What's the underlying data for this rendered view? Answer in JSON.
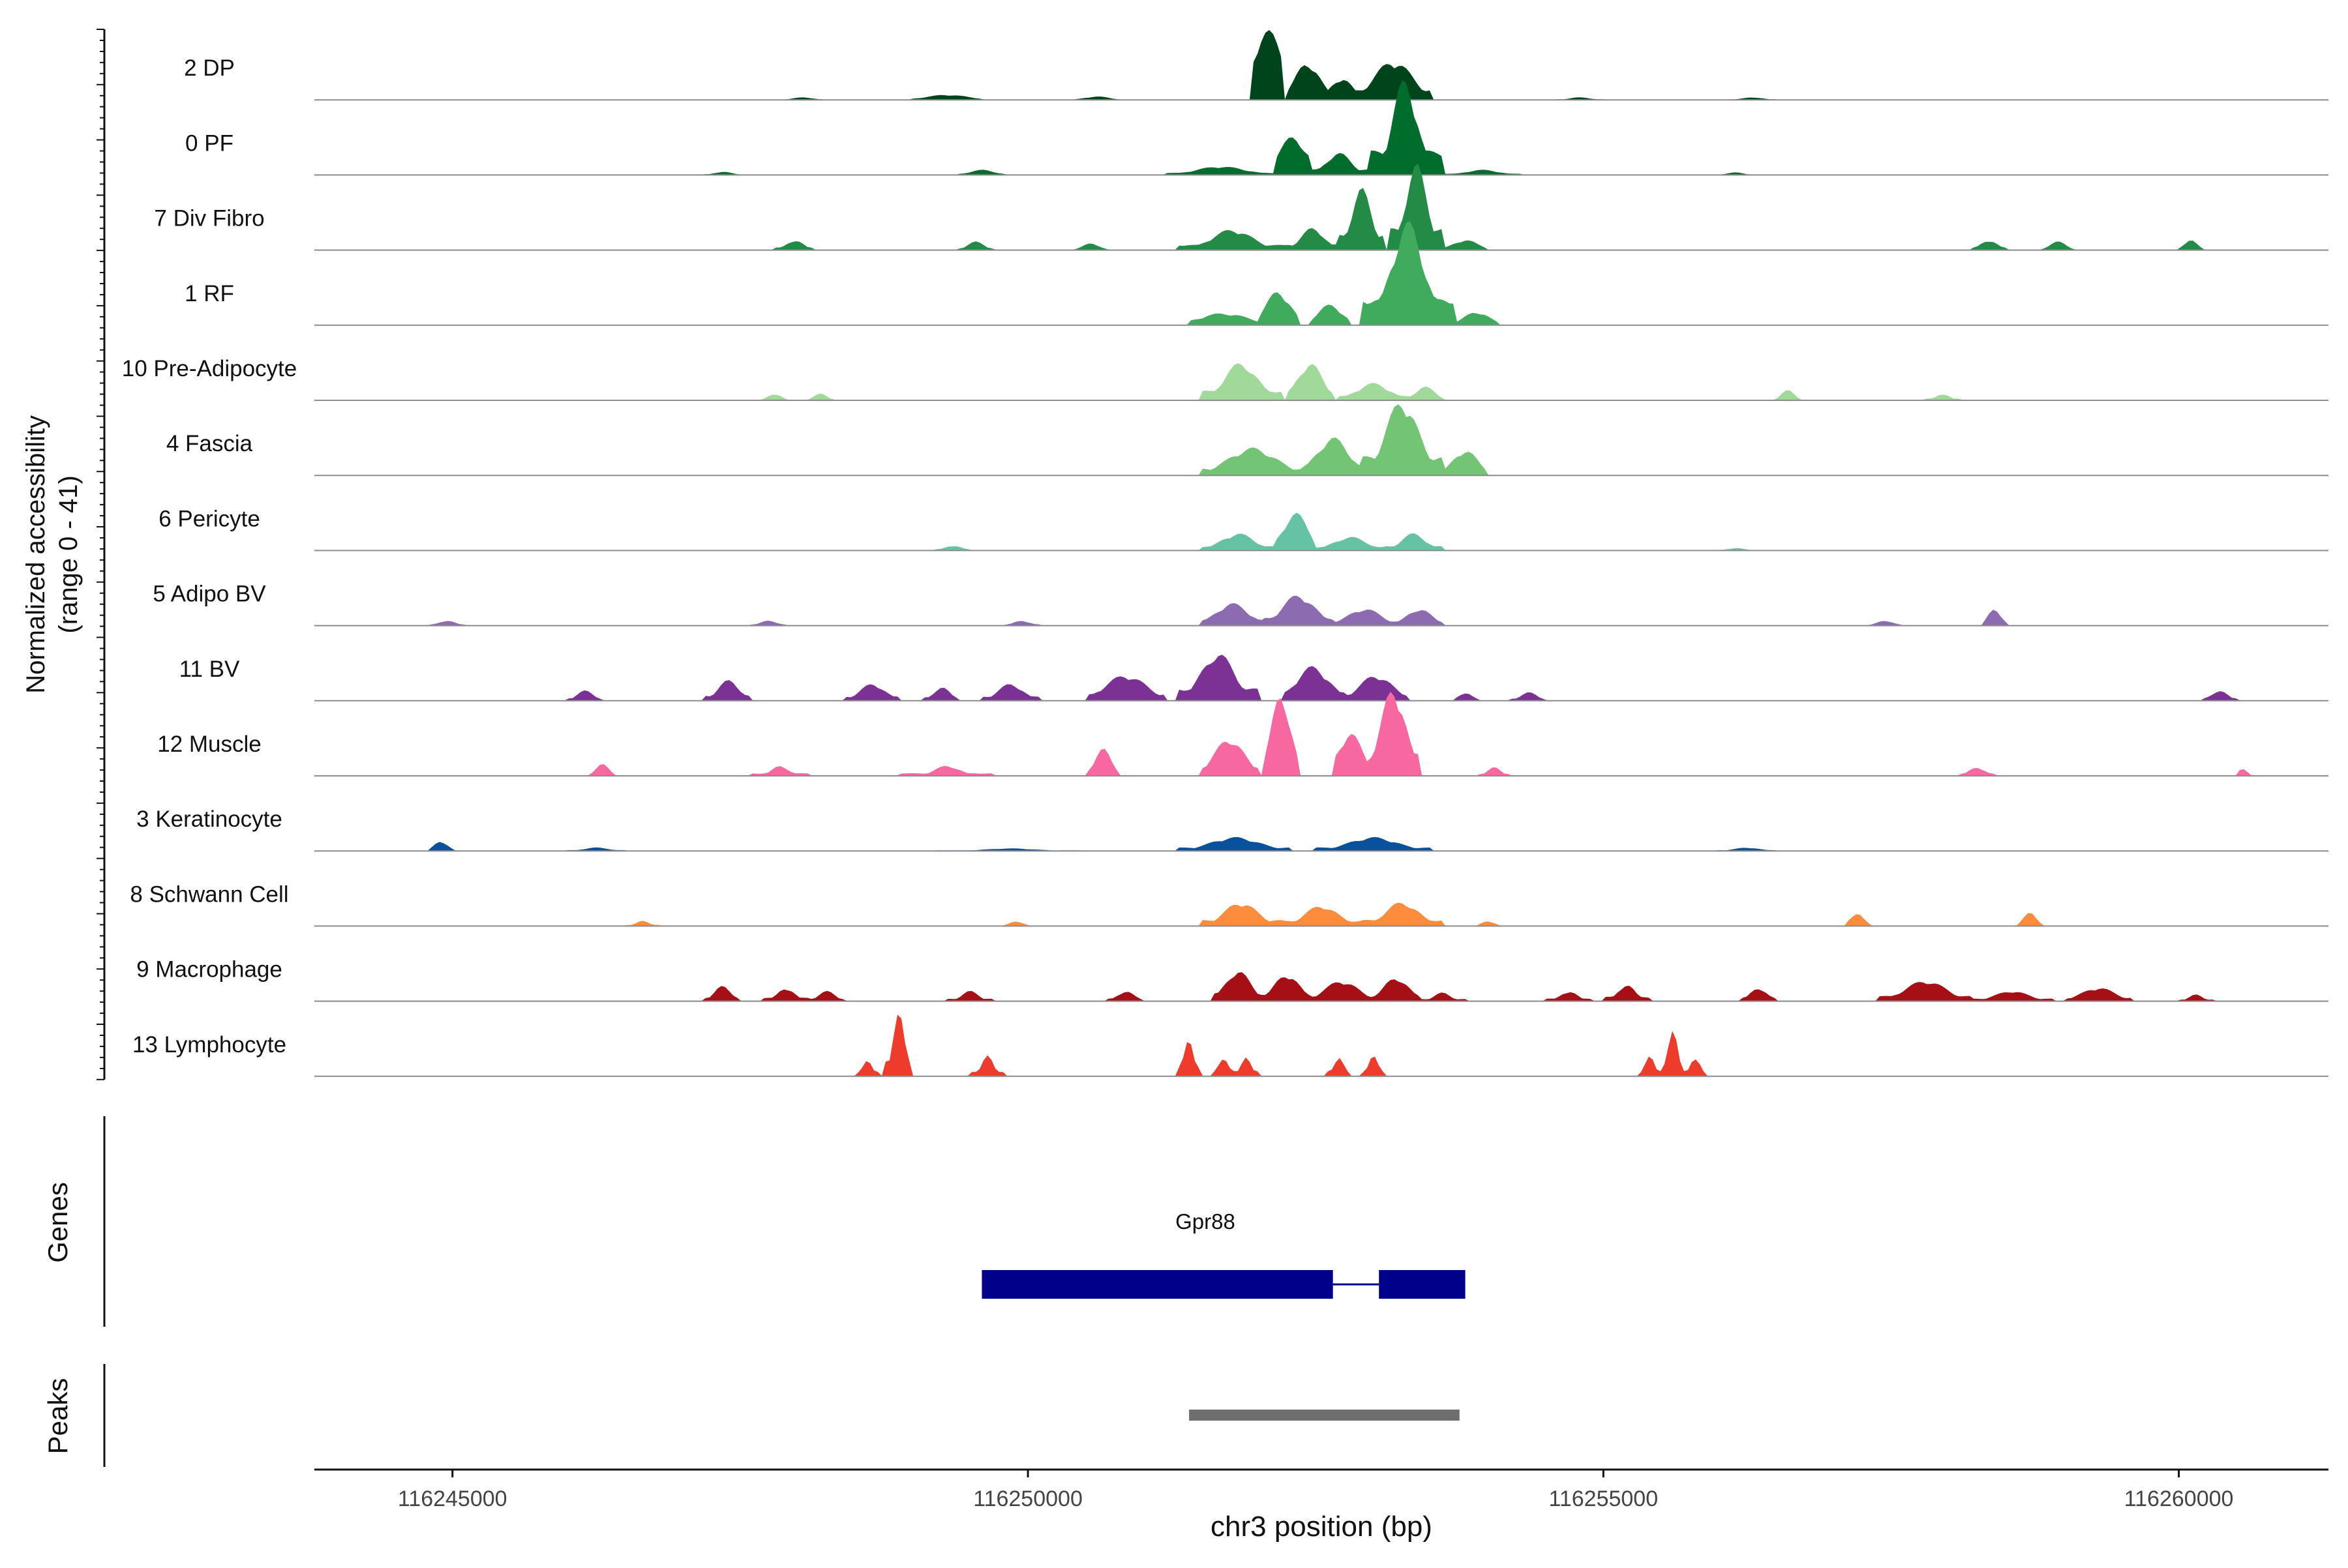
{
  "chart_data": {
    "type": "area",
    "title": "",
    "xlabel": "chr3 position (bp)",
    "xlim": [
      116243800,
      116261300
    ],
    "x_ticks": [
      {
        "value": 116245000,
        "label": "116245000"
      },
      {
        "value": 116250000,
        "label": "116250000"
      },
      {
        "value": 116255000,
        "label": "116255000"
      },
      {
        "value": 116260000,
        "label": "116260000"
      }
    ],
    "ylabel_lines": [
      "Normalized accessibility",
      "(range 0 - 41)"
    ],
    "ylim": [
      0,
      41
    ],
    "grid": false,
    "legend": "none",
    "tracks": [
      {
        "name": "2 DP",
        "color": "#00441b",
        "peaks": [
          [
            116251950,
            116252230,
            40,
            200
          ],
          [
            116252260,
            116252600,
            22,
            150
          ],
          [
            116252600,
            116252850,
            13,
            130
          ],
          [
            116252850,
            116253500,
            23,
            230
          ],
          [
            116252300,
            116252500,
            8,
            160
          ],
          [
            116249000,
            116249600,
            3,
            250
          ],
          [
            116250400,
            116250800,
            2,
            150
          ],
          [
            116247900,
            116248200,
            1.5,
            120
          ],
          [
            116254600,
            116255000,
            1.5,
            120
          ],
          [
            116256100,
            116256500,
            1.5,
            120
          ]
        ]
      },
      {
        "name": "0 PF",
        "color": "#006d2c",
        "peaks": [
          [
            116252950,
            116253600,
            56,
            150
          ],
          [
            116252150,
            116252450,
            22,
            180
          ],
          [
            116252450,
            116252950,
            13,
            150
          ],
          [
            116251200,
            116252150,
            5,
            300
          ],
          [
            116249400,
            116249800,
            3,
            150
          ],
          [
            116253600,
            116254300,
            3,
            200
          ],
          [
            116247200,
            116247500,
            2,
            100
          ],
          [
            116256000,
            116256300,
            1.5,
            100
          ]
        ]
      },
      {
        "name": "7 Div Fibro",
        "color": "#238b45",
        "peaks": [
          [
            116252700,
            116253100,
            36,
            120
          ],
          [
            116253150,
            116253600,
            50,
            130
          ],
          [
            116252250,
            116252700,
            13,
            140
          ],
          [
            116251300,
            116252250,
            12,
            250
          ],
          [
            116253600,
            116254000,
            6,
            150
          ],
          [
            116247800,
            116248150,
            6,
            100
          ],
          [
            116249400,
            116249700,
            5,
            100
          ],
          [
            116250400,
            116250700,
            4,
            100
          ],
          [
            116258200,
            116258500,
            6,
            100
          ],
          [
            116258800,
            116259100,
            5,
            100
          ],
          [
            116260000,
            116260200,
            6,
            80
          ]
        ]
      },
      {
        "name": "1 RF",
        "color": "#41ab5d",
        "peaks": [
          [
            116252900,
            116253700,
            60,
            200
          ],
          [
            116252000,
            116252350,
            20,
            150
          ],
          [
            116252450,
            116252800,
            12,
            150
          ],
          [
            116251400,
            116252000,
            7,
            300
          ],
          [
            116253700,
            116254100,
            8,
            150
          ]
        ]
      },
      {
        "name": "10 Pre-Adipocyte",
        "color": "#a1d99b",
        "peaks": [
          [
            116251500,
            116252200,
            22,
            200
          ],
          [
            116252250,
            116252650,
            22,
            150
          ],
          [
            116252700,
            116253300,
            10,
            200
          ],
          [
            116253300,
            116253600,
            8,
            120
          ],
          [
            116247700,
            116247900,
            4,
            80
          ],
          [
            116248100,
            116248300,
            4,
            80
          ],
          [
            116256500,
            116256700,
            6,
            80
          ],
          [
            116257800,
            116258100,
            4,
            80
          ]
        ]
      },
      {
        "name": "4 Fascia",
        "color": "#74c476",
        "peaks": [
          [
            116252900,
            116253600,
            44,
            200
          ],
          [
            116251500,
            116252400,
            16,
            300
          ],
          [
            116252400,
            116252900,
            22,
            200
          ],
          [
            116253600,
            116254000,
            15,
            150
          ]
        ]
      },
      {
        "name": "6 Pericyte",
        "color": "#66c2a4",
        "peaks": [
          [
            116251500,
            116252150,
            10,
            200
          ],
          [
            116252150,
            116252500,
            22,
            150
          ],
          [
            116252500,
            116253100,
            8,
            200
          ],
          [
            116253100,
            116253600,
            10,
            150
          ],
          [
            116249200,
            116249500,
            3,
            100
          ],
          [
            116256000,
            116256300,
            1.5,
            100
          ]
        ]
      },
      {
        "name": "5 Adipo BV",
        "color": "#8c6bb1",
        "peaks": [
          [
            116251500,
            116252050,
            13,
            200
          ],
          [
            116252050,
            116252650,
            18,
            200
          ],
          [
            116252650,
            116253200,
            10,
            200
          ],
          [
            116253200,
            116253600,
            10,
            150
          ],
          [
            116244800,
            116245100,
            3,
            100
          ],
          [
            116247600,
            116247900,
            3,
            100
          ],
          [
            116258300,
            116258500,
            10,
            80
          ],
          [
            116257300,
            116257600,
            3,
            100
          ],
          [
            116249800,
            116250100,
            3,
            100
          ]
        ]
      },
      {
        "name": "11 BV",
        "color": "#7b3294",
        "peaks": [
          [
            116251300,
            116252000,
            28,
            200
          ],
          [
            116252200,
            116252750,
            20,
            200
          ],
          [
            116252750,
            116253300,
            15,
            200
          ],
          [
            116250500,
            116251200,
            15,
            250
          ],
          [
            116247200,
            116247600,
            12,
            130
          ],
          [
            116248400,
            116248900,
            10,
            150
          ],
          [
            116249100,
            116249400,
            8,
            100
          ],
          [
            116249600,
            116250100,
            10,
            150
          ],
          [
            116246000,
            116246300,
            6,
            100
          ],
          [
            116260200,
            116260500,
            6,
            100
          ],
          [
            116253700,
            116253900,
            5,
            80
          ],
          [
            116254200,
            116254500,
            5,
            100
          ]
        ]
      },
      {
        "name": "12 Muscle",
        "color": "#f768a1",
        "peaks": [
          [
            116252050,
            116252350,
            48,
            120
          ],
          [
            116252950,
            116253400,
            52,
            150
          ],
          [
            116251500,
            116252000,
            22,
            180
          ],
          [
            116252650,
            116252950,
            25,
            150
          ],
          [
            116250500,
            116250800,
            16,
            100
          ],
          [
            116246200,
            116246400,
            7,
            80
          ],
          [
            116247600,
            116248100,
            6,
            100
          ],
          [
            116248900,
            116249700,
            6,
            150
          ],
          [
            116258100,
            116258400,
            5,
            100
          ],
          [
            116253900,
            116254200,
            5,
            80
          ],
          [
            116260500,
            116260600,
            4,
            60
          ]
        ]
      },
      {
        "name": "3 Keratinocyte",
        "color": "#08519c",
        "peaks": [
          [
            116244800,
            116245000,
            6,
            80
          ],
          [
            116251300,
            116252300,
            8,
            300
          ],
          [
            116252500,
            116253500,
            8,
            300
          ],
          [
            116246000,
            116246500,
            2,
            150
          ],
          [
            116256000,
            116256500,
            2,
            150
          ],
          [
            116249200,
            116250500,
            1.5,
            300
          ]
        ]
      },
      {
        "name": "8 Schwann Cell",
        "color": "#fd8d3c",
        "peaks": [
          [
            116251500,
            116252200,
            14,
            200
          ],
          [
            116252200,
            116252900,
            12,
            200
          ],
          [
            116252900,
            116253600,
            14,
            200
          ],
          [
            116246500,
            116246800,
            3,
            80
          ],
          [
            116257100,
            116257300,
            8,
            80
          ],
          [
            116258600,
            116258800,
            8,
            80
          ],
          [
            116249800,
            116250000,
            3,
            80
          ],
          [
            116253900,
            116254100,
            3,
            80
          ]
        ]
      },
      {
        "name": "9 Macrophage",
        "color": "#a50f15",
        "peaks": [
          [
            116251600,
            116252050,
            18,
            150
          ],
          [
            116252050,
            116252450,
            16,
            150
          ],
          [
            116252450,
            116253000,
            12,
            200
          ],
          [
            116253000,
            116253400,
            14,
            150
          ],
          [
            116247200,
            116247500,
            9,
            100
          ],
          [
            116247700,
            116248100,
            8,
            100
          ],
          [
            116248100,
            116248400,
            6,
            100
          ],
          [
            116249300,
            116249700,
            6,
            100
          ],
          [
            116250700,
            116251000,
            6,
            100
          ],
          [
            116254500,
            116254900,
            6,
            100
          ],
          [
            116255000,
            116255400,
            10,
            100
          ],
          [
            116256200,
            116256500,
            8,
            100
          ],
          [
            116257400,
            116258200,
            12,
            250
          ],
          [
            116258200,
            116258900,
            6,
            200
          ],
          [
            116259000,
            116259600,
            8,
            200
          ],
          [
            116253400,
            116253800,
            5,
            100
          ],
          [
            116260000,
            116260300,
            4,
            80
          ]
        ]
      },
      {
        "name": "13 Lymphocyte",
        "color": "#ef3b2c",
        "peaks": [
          [
            116248500,
            116248700,
            10,
            60
          ],
          [
            116248750,
            116249000,
            38,
            70
          ],
          [
            116249500,
            116249800,
            12,
            70
          ],
          [
            116251300,
            116251500,
            22,
            60
          ],
          [
            116251600,
            116251800,
            12,
            60
          ],
          [
            116251800,
            116252000,
            12,
            60
          ],
          [
            116252600,
            116252800,
            12,
            60
          ],
          [
            116252900,
            116253100,
            12,
            60
          ],
          [
            116255300,
            116255500,
            12,
            60
          ],
          [
            116255500,
            116255700,
            30,
            60
          ],
          [
            116255700,
            116255900,
            12,
            60
          ]
        ]
      }
    ],
    "genes": {
      "label": "Genes",
      "name": "Gpr88",
      "color": "#00008b",
      "exons": [
        [
          116249600,
          116252650
        ],
        [
          116253050,
          116253800
        ]
      ],
      "intron": [
        116252650,
        116253050
      ]
    },
    "peaks_track": {
      "label": "Peaks",
      "color": "#6e6e6e",
      "regions": [
        [
          116251400,
          116253750
        ]
      ]
    }
  }
}
